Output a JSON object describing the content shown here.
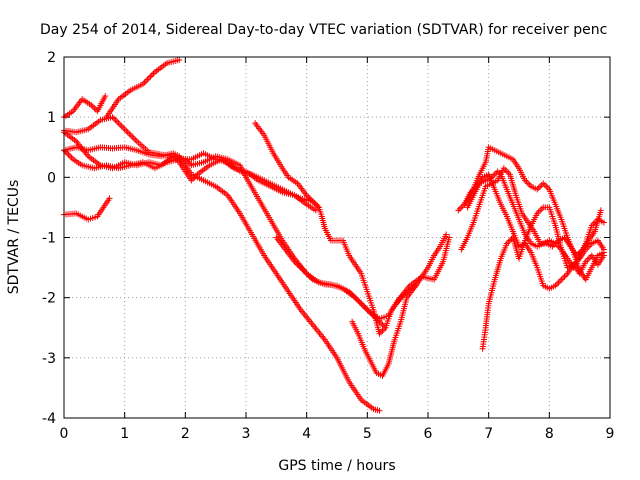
{
  "chart_data": {
    "type": "scatter",
    "title": "Day 254 of 2014, Sidereal Day-to-day VTEC variation (SDTVAR) for receiver penc",
    "xlabel": "GPS time / hours",
    "ylabel": "SDTVAR / TECUs",
    "xlim": [
      0,
      9
    ],
    "ylim": [
      -4,
      2
    ],
    "x_ticks": [
      "0",
      "1",
      "2",
      "3",
      "4",
      "5",
      "6",
      "7",
      "8",
      "9"
    ],
    "y_ticks": [
      "-4",
      "-3",
      "-2",
      "-1",
      "0",
      "1",
      "2"
    ],
    "grid": true,
    "marker": "plus",
    "colors": {
      "series": "#ff0000",
      "grid": "#a0a0a0",
      "axis": "#000000"
    },
    "series": [
      {
        "points": [
          [
            0,
            -0.62
          ],
          [
            0.2,
            -0.6
          ],
          [
            0.4,
            -0.7
          ],
          [
            0.55,
            -0.65
          ],
          [
            0.65,
            -0.5
          ],
          [
            0.75,
            -0.35
          ]
        ]
      },
      {
        "points": [
          [
            0,
            1.0
          ],
          [
            0.15,
            1.1
          ],
          [
            0.3,
            1.3
          ],
          [
            0.45,
            1.2
          ],
          [
            0.55,
            1.1
          ],
          [
            0.68,
            1.35
          ]
        ]
      },
      {
        "points": [
          [
            0,
            0.78
          ],
          [
            0.2,
            0.75
          ],
          [
            0.4,
            0.8
          ],
          [
            0.6,
            0.95
          ],
          [
            0.8,
            1.0
          ],
          [
            1.0,
            0.8
          ],
          [
            1.2,
            0.6
          ],
          [
            1.4,
            0.42
          ],
          [
            1.6,
            0.38
          ],
          [
            1.8,
            0.35
          ],
          [
            1.9,
            0.25
          ],
          [
            2.0,
            0.1
          ],
          [
            2.1,
            -0.05
          ],
          [
            2.2,
            0.05
          ],
          [
            2.4,
            0.2
          ],
          [
            2.6,
            0.3
          ],
          [
            2.8,
            0.15
          ],
          [
            3.0,
            0.1
          ],
          [
            3.2,
            -0.05
          ],
          [
            3.4,
            -0.15
          ],
          [
            3.6,
            -0.25
          ],
          [
            3.8,
            -0.3
          ],
          [
            4.0,
            -0.45
          ],
          [
            4.15,
            -0.55
          ]
        ]
      },
      {
        "points": [
          [
            0,
            0.45
          ],
          [
            0.2,
            0.5
          ],
          [
            0.4,
            0.45
          ],
          [
            0.6,
            0.5
          ],
          [
            0.8,
            0.48
          ],
          [
            1.0,
            0.5
          ],
          [
            1.2,
            0.45
          ],
          [
            1.4,
            0.38
          ],
          [
            1.6,
            0.35
          ],
          [
            1.8,
            0.4
          ],
          [
            1.9,
            0.35
          ],
          [
            2.0,
            0.2
          ],
          [
            2.1,
            0.05
          ],
          [
            2.3,
            -0.05
          ],
          [
            2.5,
            -0.15
          ],
          [
            2.7,
            -0.3
          ],
          [
            2.9,
            -0.6
          ],
          [
            3.1,
            -0.95
          ],
          [
            3.3,
            -1.3
          ],
          [
            3.5,
            -1.6
          ],
          [
            3.7,
            -1.9
          ],
          [
            3.9,
            -2.2
          ],
          [
            4.1,
            -2.45
          ],
          [
            4.3,
            -2.7
          ],
          [
            4.5,
            -3.0
          ],
          [
            4.7,
            -3.4
          ],
          [
            4.9,
            -3.7
          ],
          [
            5.1,
            -3.85
          ],
          [
            5.2,
            -3.88
          ]
        ]
      },
      {
        "points": [
          [
            0,
            0.75
          ],
          [
            0.2,
            0.6
          ],
          [
            0.4,
            0.35
          ],
          [
            0.6,
            0.2
          ],
          [
            0.8,
            0.15
          ],
          [
            1.0,
            0.25
          ],
          [
            1.2,
            0.2
          ],
          [
            1.4,
            0.25
          ],
          [
            1.6,
            0.2
          ],
          [
            1.8,
            0.35
          ],
          [
            2.0,
            0.3
          ],
          [
            2.1,
            0.2
          ],
          [
            2.3,
            0.25
          ],
          [
            2.5,
            0.35
          ],
          [
            2.7,
            0.3
          ],
          [
            2.9,
            0.2
          ],
          [
            3.0,
            0.0
          ],
          [
            3.2,
            -0.35
          ],
          [
            3.4,
            -0.7
          ],
          [
            3.6,
            -1.05
          ],
          [
            3.8,
            -1.35
          ],
          [
            4.0,
            -1.6
          ],
          [
            4.2,
            -1.75
          ],
          [
            4.4,
            -1.78
          ],
          [
            4.6,
            -1.85
          ],
          [
            4.8,
            -2.0
          ],
          [
            5.0,
            -2.2
          ],
          [
            5.2,
            -2.4
          ],
          [
            5.3,
            -2.5
          ]
        ]
      },
      {
        "points": [
          [
            0,
            0.45
          ],
          [
            0.15,
            0.3
          ],
          [
            0.3,
            0.2
          ],
          [
            0.5,
            0.15
          ],
          [
            0.7,
            0.2
          ],
          [
            0.9,
            0.15
          ],
          [
            1.1,
            0.2
          ],
          [
            1.3,
            0.25
          ],
          [
            1.5,
            0.15
          ],
          [
            1.7,
            0.25
          ],
          [
            1.9,
            0.3
          ],
          [
            2.1,
            0.3
          ],
          [
            2.3,
            0.4
          ],
          [
            2.5,
            0.3
          ],
          [
            2.7,
            0.25
          ],
          [
            2.9,
            0.1
          ],
          [
            3.1,
            0.05
          ],
          [
            3.3,
            -0.05
          ],
          [
            3.5,
            -0.15
          ],
          [
            3.7,
            -0.25
          ],
          [
            3.9,
            -0.35
          ],
          [
            4.1,
            -0.4
          ],
          [
            4.2,
            -0.5
          ],
          [
            4.25,
            -0.65
          ],
          [
            4.3,
            -0.85
          ],
          [
            4.4,
            -1.05
          ],
          [
            4.6,
            -1.05
          ],
          [
            4.7,
            -1.3
          ],
          [
            4.9,
            -1.6
          ],
          [
            5.0,
            -1.9
          ],
          [
            5.1,
            -2.2
          ],
          [
            5.2,
            -2.6
          ],
          [
            5.3,
            -2.5
          ],
          [
            5.4,
            -2.2
          ],
          [
            5.6,
            -1.95
          ],
          [
            5.8,
            -1.8
          ],
          [
            6.0,
            -1.5
          ],
          [
            6.1,
            -1.3
          ],
          [
            6.2,
            -1.15
          ],
          [
            6.3,
            -0.95
          ]
        ]
      },
      {
        "points": [
          [
            0.7,
            1.0
          ],
          [
            0.9,
            1.3
          ],
          [
            1.1,
            1.45
          ],
          [
            1.3,
            1.55
          ],
          [
            1.5,
            1.75
          ],
          [
            1.7,
            1.9
          ],
          [
            1.9,
            1.95
          ]
        ]
      },
      {
        "points": [
          [
            3.15,
            0.9
          ],
          [
            3.3,
            0.7
          ],
          [
            3.45,
            0.4
          ],
          [
            3.6,
            0.15
          ],
          [
            3.7,
            0.0
          ],
          [
            3.85,
            -0.1
          ],
          [
            4.0,
            -0.3
          ],
          [
            4.2,
            -0.5
          ]
        ]
      },
      {
        "points": [
          [
            3.5,
            -1.0
          ],
          [
            3.65,
            -1.2
          ],
          [
            3.8,
            -1.4
          ],
          [
            3.95,
            -1.55
          ],
          [
            4.1,
            -1.7
          ],
          [
            4.3,
            -1.78
          ],
          [
            4.5,
            -1.8
          ],
          [
            4.7,
            -1.9
          ],
          [
            4.9,
            -2.1
          ],
          [
            5.05,
            -2.25
          ],
          [
            5.2,
            -2.35
          ],
          [
            5.35,
            -2.3
          ],
          [
            5.5,
            -2.05
          ],
          [
            5.7,
            -1.8
          ],
          [
            5.9,
            -1.65
          ],
          [
            6.1,
            -1.7
          ],
          [
            6.25,
            -1.4
          ],
          [
            6.35,
            -1.0
          ]
        ]
      },
      {
        "points": [
          [
            4.75,
            -2.4
          ],
          [
            4.85,
            -2.6
          ],
          [
            4.95,
            -2.85
          ],
          [
            5.05,
            -3.05
          ],
          [
            5.15,
            -3.25
          ],
          [
            5.25,
            -3.3
          ],
          [
            5.35,
            -3.1
          ],
          [
            5.4,
            -2.9
          ],
          [
            5.45,
            -2.7
          ],
          [
            5.55,
            -2.4
          ],
          [
            5.65,
            -2.0
          ],
          [
            5.8,
            -1.8
          ]
        ]
      },
      {
        "points": [
          [
            6.5,
            -0.55
          ],
          [
            6.6,
            -0.45
          ],
          [
            6.7,
            -0.25
          ],
          [
            6.8,
            -0.15
          ],
          [
            6.9,
            0.0
          ],
          [
            7.0,
            0.05
          ],
          [
            7.1,
            -0.2
          ],
          [
            7.2,
            -0.45
          ],
          [
            7.3,
            -0.65
          ],
          [
            7.4,
            -0.9
          ],
          [
            7.5,
            -1.15
          ],
          [
            7.6,
            -1.1
          ],
          [
            7.7,
            -1.25
          ],
          [
            7.8,
            -1.5
          ],
          [
            7.9,
            -1.8
          ],
          [
            8.0,
            -1.85
          ],
          [
            8.1,
            -1.8
          ],
          [
            8.2,
            -1.7
          ],
          [
            8.3,
            -1.6
          ],
          [
            8.4,
            -1.45
          ],
          [
            8.5,
            -1.35
          ],
          [
            8.6,
            -1.2
          ],
          [
            8.7,
            -1.1
          ],
          [
            8.8,
            -1.05
          ],
          [
            8.9,
            -1.2
          ]
        ]
      },
      {
        "points": [
          [
            6.55,
            -1.2
          ],
          [
            6.65,
            -1.0
          ],
          [
            6.75,
            -0.75
          ],
          [
            6.85,
            -0.45
          ],
          [
            6.95,
            -0.15
          ],
          [
            7.05,
            -0.1
          ],
          [
            7.15,
            -0.05
          ],
          [
            7.25,
            0.15
          ],
          [
            7.35,
            0.05
          ],
          [
            7.45,
            -0.3
          ],
          [
            7.55,
            -0.6
          ],
          [
            7.65,
            -0.75
          ],
          [
            7.75,
            -0.9
          ],
          [
            7.85,
            -1.1
          ],
          [
            7.95,
            -1.1
          ],
          [
            8.05,
            -1.15
          ],
          [
            8.15,
            -1.05
          ],
          [
            8.25,
            -1.0
          ],
          [
            8.35,
            -1.15
          ],
          [
            8.45,
            -1.3
          ],
          [
            8.55,
            -1.2
          ],
          [
            8.65,
            -1.05
          ],
          [
            8.75,
            -0.9
          ],
          [
            8.85,
            -0.55
          ]
        ]
      },
      {
        "points": [
          [
            6.9,
            -2.85
          ],
          [
            6.95,
            -2.5
          ],
          [
            7.0,
            -2.1
          ],
          [
            7.1,
            -1.7
          ],
          [
            7.2,
            -1.35
          ],
          [
            7.3,
            -1.1
          ],
          [
            7.4,
            -1.0
          ],
          [
            7.5,
            -1.35
          ],
          [
            7.6,
            -1.05
          ],
          [
            7.7,
            -0.8
          ],
          [
            7.8,
            -0.6
          ],
          [
            7.9,
            -0.5
          ],
          [
            8.0,
            -0.5
          ],
          [
            8.1,
            -0.8
          ],
          [
            8.2,
            -1.2
          ],
          [
            8.3,
            -1.5
          ],
          [
            8.4,
            -1.45
          ],
          [
            8.5,
            -1.6
          ],
          [
            8.6,
            -1.4
          ],
          [
            8.7,
            -1.3
          ],
          [
            8.8,
            -1.45
          ],
          [
            8.9,
            -1.3
          ]
        ]
      },
      {
        "points": [
          [
            6.6,
            -0.45
          ],
          [
            6.7,
            -0.3
          ],
          [
            6.85,
            0.05
          ],
          [
            6.95,
            0.25
          ],
          [
            7.0,
            0.5
          ],
          [
            7.1,
            0.45
          ],
          [
            7.2,
            0.4
          ],
          [
            7.3,
            0.35
          ],
          [
            7.4,
            0.3
          ],
          [
            7.5,
            0.15
          ],
          [
            7.6,
            -0.05
          ],
          [
            7.7,
            -0.15
          ],
          [
            7.8,
            -0.2
          ],
          [
            7.9,
            -0.1
          ],
          [
            8.0,
            -0.2
          ],
          [
            8.1,
            -0.45
          ],
          [
            8.2,
            -0.7
          ],
          [
            8.3,
            -1.0
          ],
          [
            8.4,
            -1.25
          ],
          [
            8.5,
            -1.55
          ],
          [
            8.6,
            -1.7
          ],
          [
            8.7,
            -1.5
          ],
          [
            8.8,
            -1.3
          ],
          [
            8.9,
            -1.25
          ]
        ]
      },
      {
        "points": [
          [
            6.65,
            -0.5
          ],
          [
            6.75,
            -0.3
          ],
          [
            6.85,
            -0.1
          ],
          [
            6.95,
            -0.05
          ],
          [
            7.05,
            0.0
          ],
          [
            7.15,
            0.1
          ],
          [
            7.2,
            0.05
          ],
          [
            7.3,
            -0.2
          ],
          [
            7.4,
            -0.45
          ],
          [
            7.5,
            -0.7
          ],
          [
            7.6,
            -0.95
          ],
          [
            7.7,
            -1.1
          ],
          [
            7.8,
            -1.15
          ],
          [
            7.9,
            -1.1
          ],
          [
            8.0,
            -1.05
          ],
          [
            8.1,
            -1.1
          ],
          [
            8.2,
            -1.2
          ],
          [
            8.3,
            -1.35
          ],
          [
            8.4,
            -1.5
          ],
          [
            8.5,
            -1.3
          ],
          [
            8.6,
            -1.1
          ],
          [
            8.7,
            -0.8
          ],
          [
            8.8,
            -0.7
          ],
          [
            8.9,
            -0.75
          ]
        ]
      }
    ]
  }
}
